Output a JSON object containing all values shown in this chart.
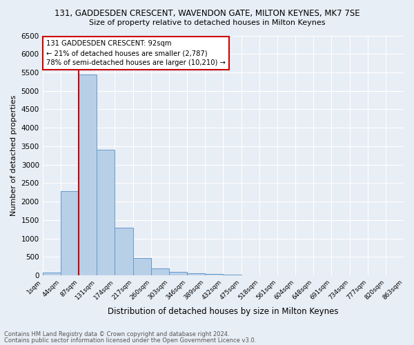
{
  "title1": "131, GADDESDEN CRESCENT, WAVENDON GATE, MILTON KEYNES, MK7 7SE",
  "title2": "Size of property relative to detached houses in Milton Keynes",
  "xlabel": "Distribution of detached houses by size in Milton Keynes",
  "ylabel": "Number of detached properties",
  "bin_labels": [
    "1sqm",
    "44sqm",
    "87sqm",
    "131sqm",
    "174sqm",
    "217sqm",
    "260sqm",
    "303sqm",
    "346sqm",
    "389sqm",
    "432sqm",
    "475sqm",
    "518sqm",
    "561sqm",
    "604sqm",
    "648sqm",
    "691sqm",
    "734sqm",
    "777sqm",
    "820sqm",
    "863sqm"
  ],
  "bar_values": [
    70,
    2280,
    5450,
    3400,
    1300,
    470,
    185,
    90,
    55,
    50,
    30,
    0,
    0,
    0,
    0,
    0,
    0,
    0,
    0,
    0
  ],
  "bar_color": "#b8cfe8",
  "bar_edge_color": "#6699cc",
  "background_color": "#e8eef5",
  "grid_color": "#ffffff",
  "ylim": [
    0,
    6500
  ],
  "yticks": [
    0,
    500,
    1000,
    1500,
    2000,
    2500,
    3000,
    3500,
    4000,
    4500,
    5000,
    5500,
    6000,
    6500
  ],
  "vline_bin_index": 2,
  "annotation_title": "131 GADDESDEN CRESCENT: 92sqm",
  "annotation_line1": "← 21% of detached houses are smaller (2,787)",
  "annotation_line2": "78% of semi-detached houses are larger (10,210) →",
  "annotation_box_color": "#ffffff",
  "annotation_border_color": "#cc0000",
  "vline_color": "#cc0000",
  "footer1": "Contains HM Land Registry data © Crown copyright and database right 2024.",
  "footer2": "Contains public sector information licensed under the Open Government Licence v3.0."
}
